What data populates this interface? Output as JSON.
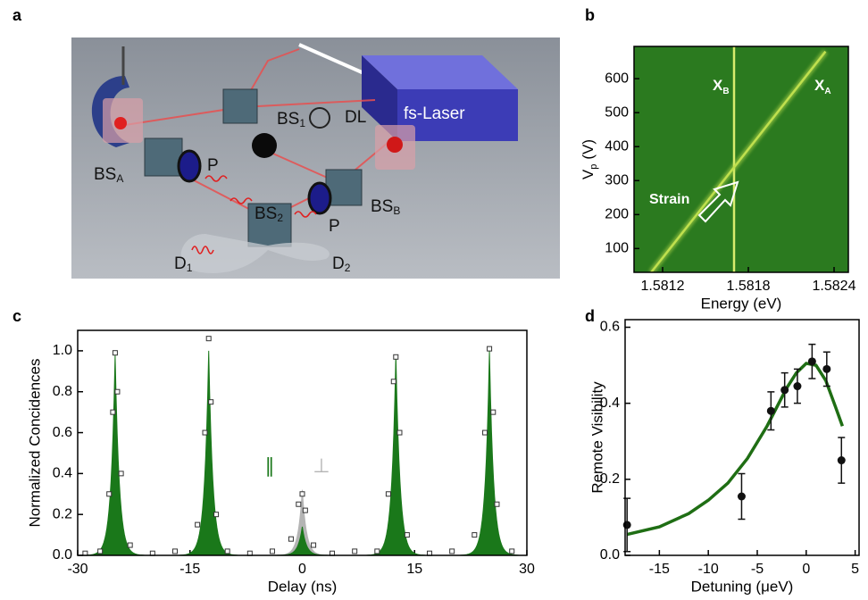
{
  "panel_labels": [
    "a",
    "b",
    "c",
    "d"
  ],
  "diagram": {
    "labels": [
      {
        "text": "fs-Laser"
      },
      {
        "text": "BS",
        "sub": "1"
      },
      {
        "text": "DL"
      },
      {
        "text": "BS",
        "sub": "A"
      },
      {
        "text": "P"
      },
      {
        "text": "BS",
        "sub": "2"
      },
      {
        "text": "BS",
        "sub": "B"
      },
      {
        "text": "P"
      },
      {
        "text": "D",
        "sub": "1"
      },
      {
        "text": "D",
        "sub": "2"
      }
    ]
  },
  "chart_data": [
    {
      "type": "image",
      "background": "#2b7a1f",
      "xlabel": "Energy (eV)",
      "ylabel": {
        "text": "V",
        "sub": "p",
        "unit": "(V)"
      },
      "xlim": [
        1.581,
        1.5825
      ],
      "xticks": [
        1.5812,
        1.5818,
        1.5824
      ],
      "ylim": [
        30,
        695
      ],
      "yticks": [
        100,
        200,
        300,
        400,
        500,
        600
      ],
      "annotation": "Strain",
      "series": [
        {
          "name": "X",
          "sub": "B",
          "color": "#d8ec6e",
          "x": [
            1.5817,
            1.5817
          ],
          "values": [
            30,
            695
          ]
        },
        {
          "name": "X",
          "sub": "A",
          "color": "#bfe04e",
          "x": [
            1.58112,
            1.58234
          ],
          "values": [
            30,
            680
          ]
        }
      ]
    },
    {
      "type": "peaks",
      "xlabel": "Delay (ns)",
      "ylabel": "Normalized Concidences",
      "xlim": [
        -30,
        30
      ],
      "xticks": [
        -30,
        -15,
        0,
        15,
        30
      ],
      "ylim": [
        0,
        1.1
      ],
      "yticks": [
        {
          "value": 0,
          "label": "0.0"
        },
        0.2,
        0.4,
        0.6,
        0.8,
        {
          "value": 1,
          "label": "1.0"
        }
      ],
      "series": [
        {
          "name": "⊥",
          "color": "#b4b4b4",
          "centers": [
            0
          ],
          "values": [
            0.32
          ],
          "width": 0.55
        },
        {
          "name": "∥",
          "color": "#1a781a",
          "centers": [
            -25,
            -12.5,
            0,
            12.5,
            25
          ],
          "values": [
            0.98,
            1.0,
            0.14,
            0.98,
            1.0
          ],
          "width": 0.55
        }
      ],
      "points": {
        "x": [
          -29,
          -27,
          -25.8,
          -25.3,
          -25,
          -24.7,
          -24.2,
          -23,
          -20,
          -17,
          -14,
          -13,
          -12.5,
          -12.2,
          -11.5,
          -10,
          -7,
          -4,
          -1.5,
          -0.5,
          0,
          0.4,
          1.5,
          4,
          7,
          10,
          11.5,
          12.2,
          12.5,
          13,
          14,
          17,
          20,
          23,
          24.4,
          25,
          25.5,
          26,
          28
        ],
        "values": [
          0.01,
          0.02,
          0.3,
          0.7,
          0.99,
          0.8,
          0.4,
          0.05,
          0.01,
          0.02,
          0.15,
          0.6,
          1.06,
          0.75,
          0.2,
          0.02,
          0.01,
          0.02,
          0.08,
          0.25,
          0.3,
          0.22,
          0.05,
          0.01,
          0.02,
          0.02,
          0.3,
          0.85,
          0.97,
          0.6,
          0.1,
          0.01,
          0.02,
          0.1,
          0.6,
          1.01,
          0.7,
          0.25,
          0.02
        ]
      }
    },
    {
      "type": "errorbar",
      "xlabel": "Detuning (μeV)",
      "ylabel": "Remote Visibility",
      "xlim": [
        -18.5,
        5.4
      ],
      "xticks": [
        -15,
        -10,
        -5,
        0,
        5
      ],
      "ylim": [
        0,
        0.62
      ],
      "yticks": [
        {
          "value": 0,
          "label": "0.0"
        },
        0.2,
        0.4,
        0.6
      ],
      "series": [
        {
          "color": "#111111",
          "x": [
            -18.3,
            -6.6,
            -3.6,
            -2.2,
            -0.9,
            0.6,
            2.1,
            3.6
          ],
          "values": [
            0.08,
            0.155,
            0.38,
            0.435,
            0.445,
            0.51,
            0.49,
            0.25
          ],
          "errors": [
            0.07,
            0.06,
            0.05,
            0.045,
            0.045,
            0.045,
            0.045,
            0.06
          ]
        }
      ],
      "fit": {
        "color": "#1f6e14",
        "x": [
          -18.3,
          -15,
          -12,
          -10,
          -8,
          -6,
          -4,
          -2,
          -1,
          0,
          1,
          2,
          3,
          3.7
        ],
        "values": [
          0.055,
          0.075,
          0.11,
          0.145,
          0.19,
          0.255,
          0.34,
          0.44,
          0.48,
          0.505,
          0.5,
          0.46,
          0.39,
          0.34
        ]
      }
    }
  ]
}
